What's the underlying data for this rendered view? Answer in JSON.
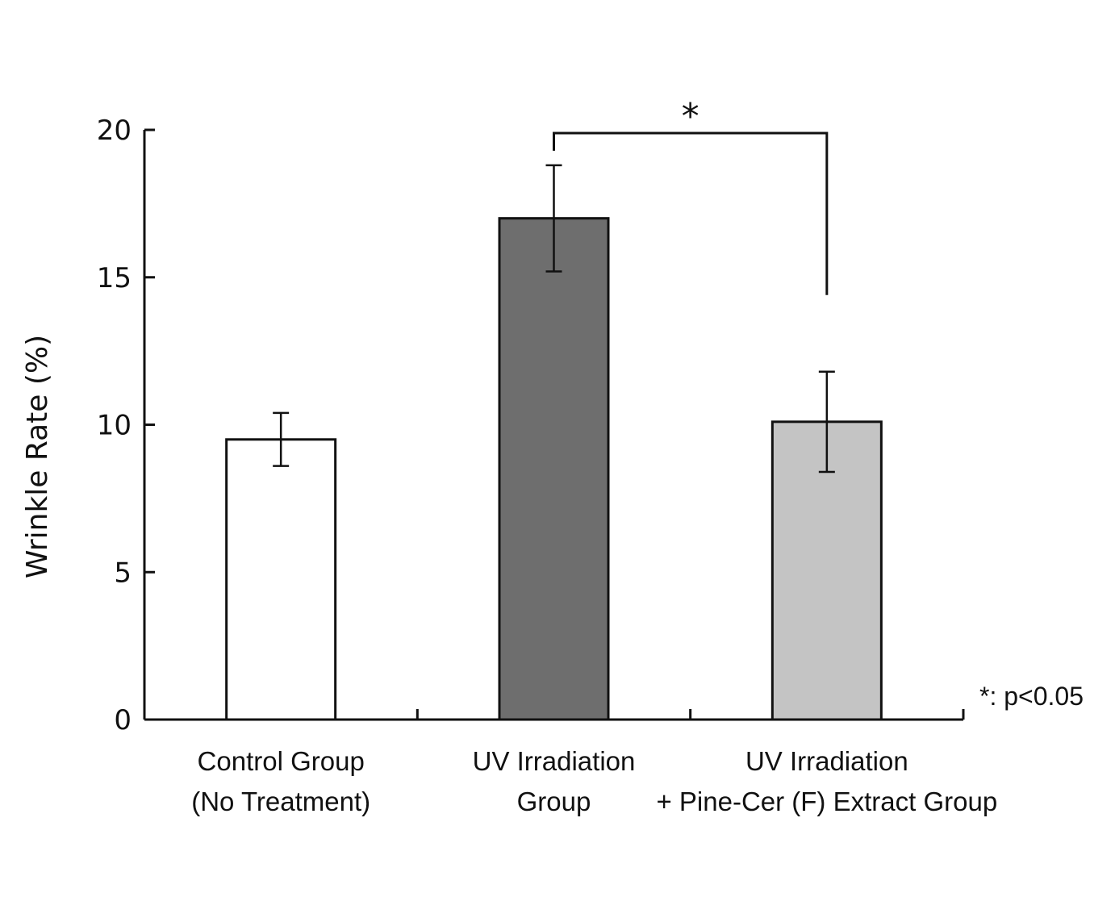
{
  "chart_data": {
    "type": "bar",
    "title": "",
    "xlabel": "",
    "ylabel": "Wrinkle Rate (%)",
    "ylim": [
      0,
      20
    ],
    "yticks": [
      "0",
      "5",
      "10",
      "15",
      "20"
    ],
    "categories": [
      [
        "Control Group",
        "(No Treatment)"
      ],
      [
        "UV Irradiation",
        "Group"
      ],
      [
        "UV Irradiation",
        "+ Pine-Cer (F) Extract Group"
      ]
    ],
    "values": [
      9.5,
      17.0,
      10.1
    ],
    "errors": [
      0.9,
      1.8,
      1.7
    ],
    "bar_colors": [
      "#ffffff",
      "#6e6e6e",
      "#c4c4c4"
    ],
    "significance": {
      "between": [
        1,
        2
      ],
      "marker": "*",
      "note": "*: p<0.05"
    },
    "grid": false,
    "legend": "none"
  }
}
